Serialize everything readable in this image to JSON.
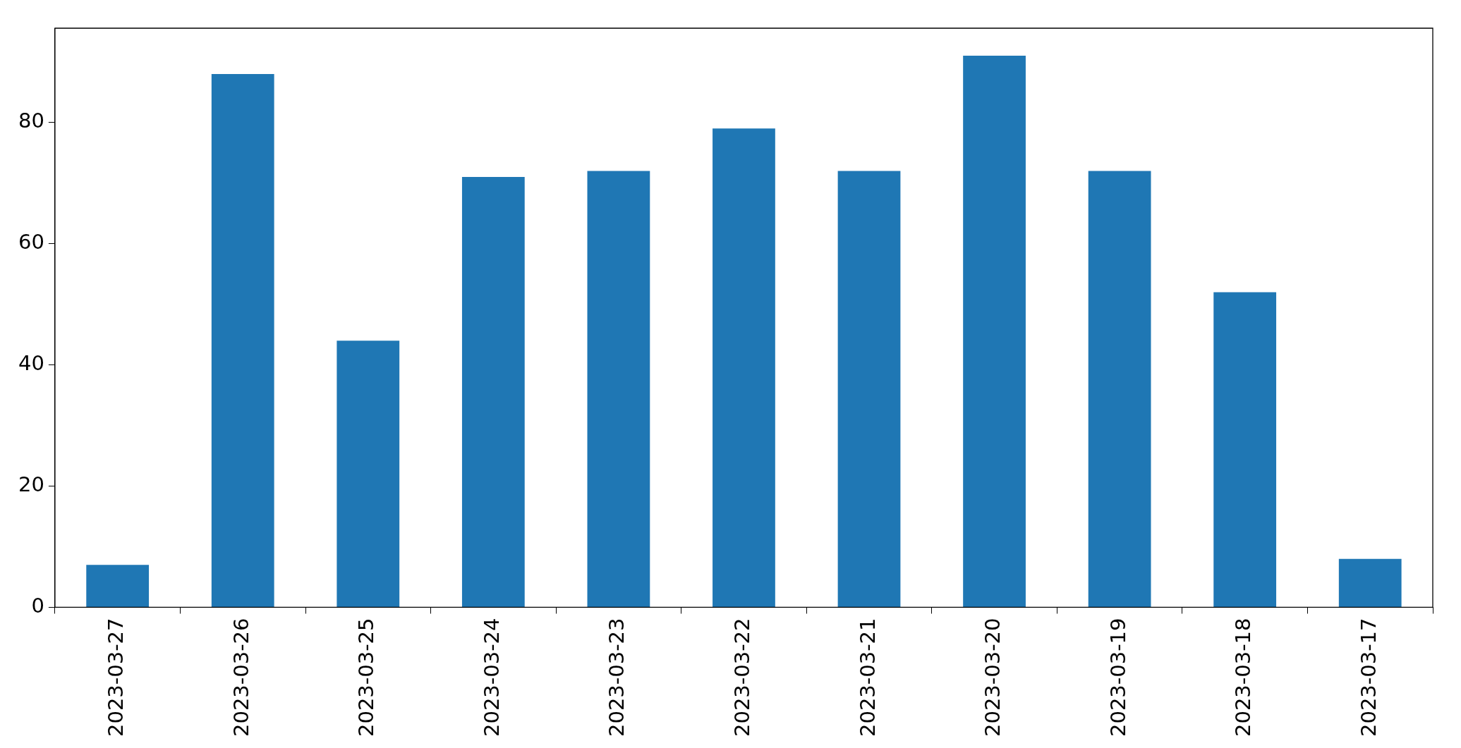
{
  "chart_data": {
    "type": "bar",
    "categories": [
      "2023-03-27",
      "2023-03-26",
      "2023-03-25",
      "2023-03-24",
      "2023-03-23",
      "2023-03-22",
      "2023-03-21",
      "2023-03-20",
      "2023-03-19",
      "2023-03-18",
      "2023-03-17"
    ],
    "values": [
      7,
      88,
      44,
      71,
      72,
      79,
      72,
      91,
      72,
      52,
      8
    ],
    "color": "#1f77b4",
    "ylim": [
      0,
      95.55
    ],
    "yticks": [
      0,
      20,
      40,
      60,
      80
    ],
    "grid": false
  }
}
